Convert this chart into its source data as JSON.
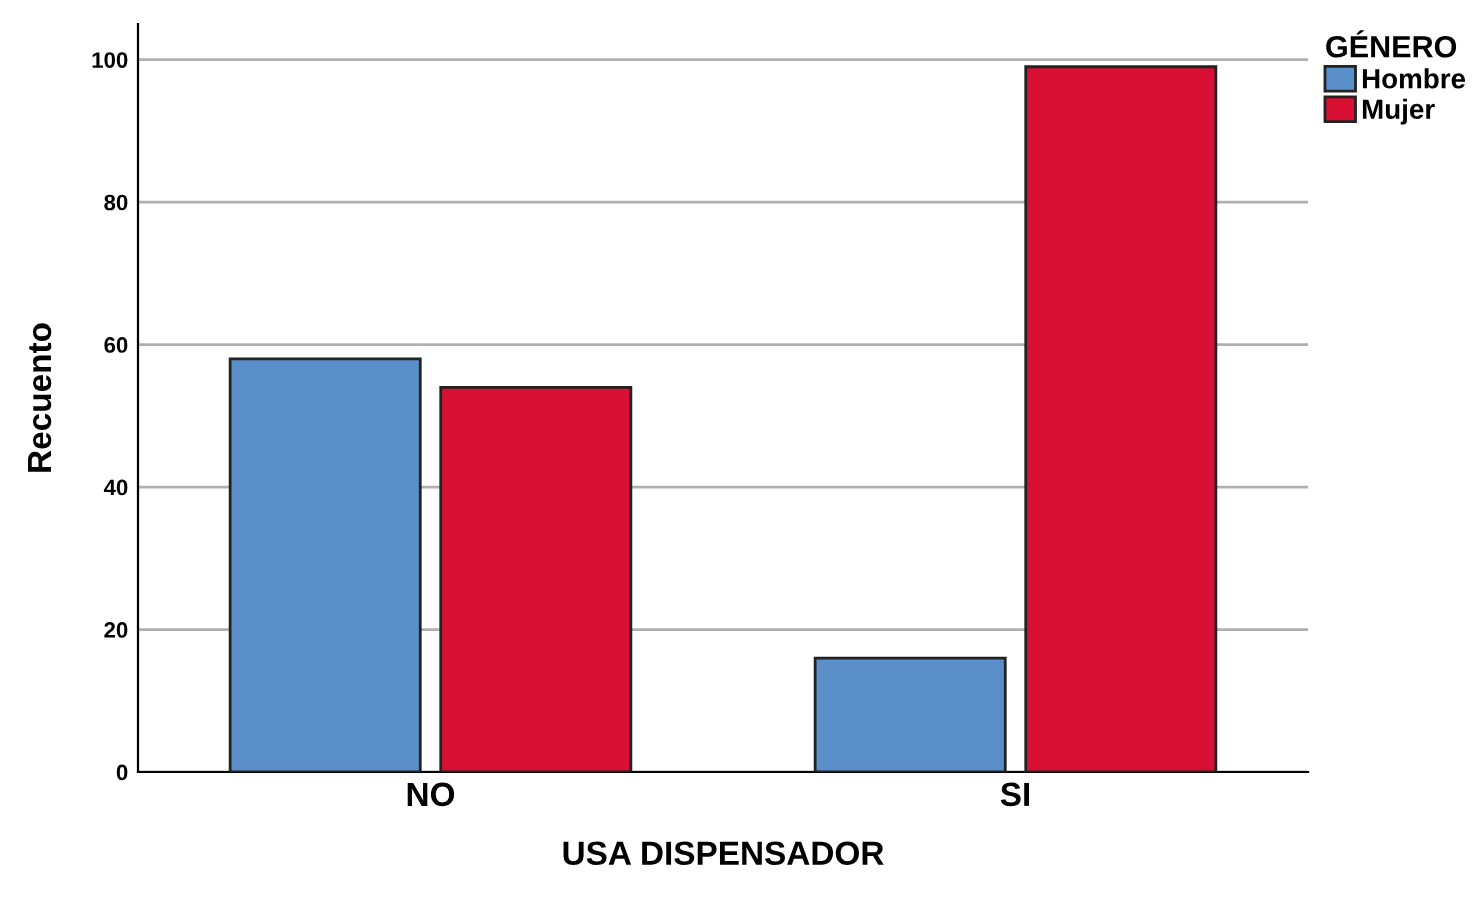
{
  "chart_data": {
    "type": "bar",
    "xlabel": "USA DISPENSADOR",
    "ylabel": "Recuento",
    "legend_title": "GÉNERO",
    "categories": [
      "NO",
      "SI"
    ],
    "series": [
      {
        "name": "Hombre",
        "color": "#5b8fc9",
        "values": [
          58,
          16
        ]
      },
      {
        "name": "Mujer",
        "color": "#d71034",
        "values": [
          54,
          99
        ]
      }
    ],
    "ylim": [
      0,
      105
    ],
    "yticks": [
      0,
      20,
      40,
      60,
      80,
      100
    ],
    "grid": "y",
    "legend": "top right"
  }
}
